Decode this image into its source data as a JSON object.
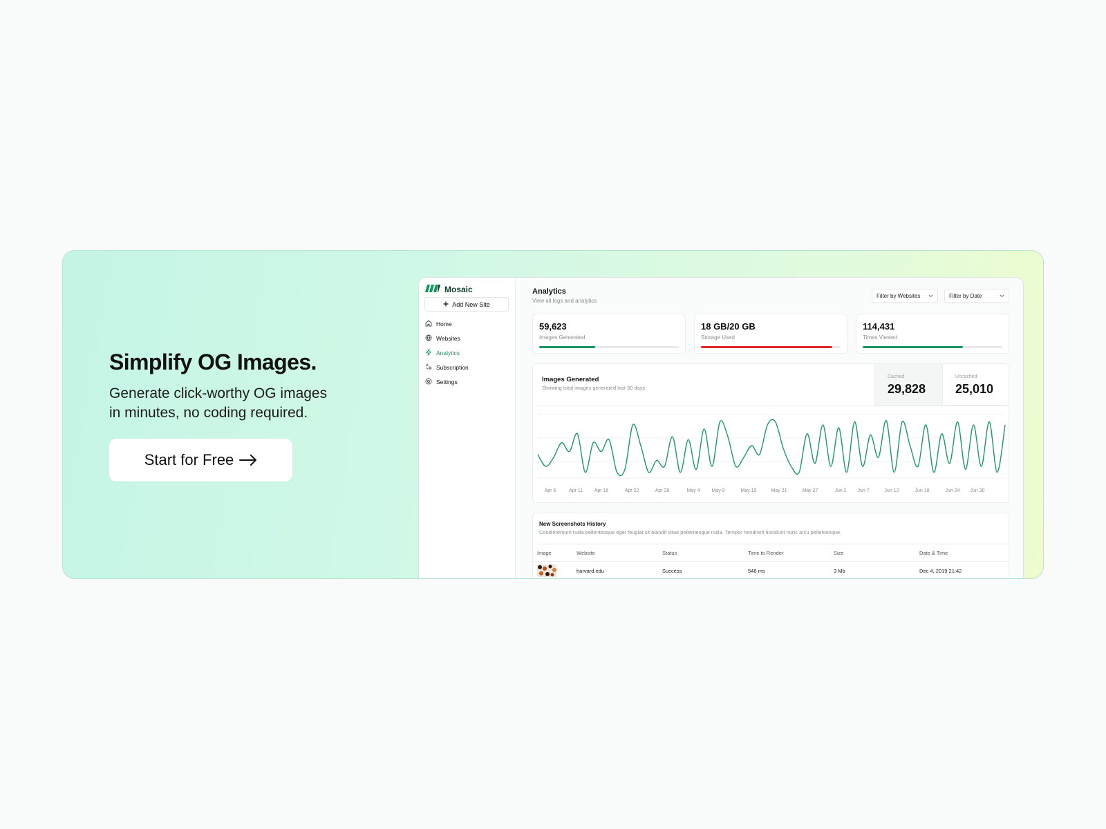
{
  "hero": {
    "title": "Simplify OG Images.",
    "subtitle_line1": "Generate click-worthy OG images",
    "subtitle_line2": "in minutes, no coding required.",
    "cta_label": "Start for Free",
    "cta_icon": "arrow-right-icon"
  },
  "colors": {
    "accent": "#14955c",
    "brand_dark": "#0f3d2b",
    "danger": "#e02424",
    "chart_line": "#1a9a66"
  },
  "app": {
    "brand": "Mosaic",
    "add_site_label": "Add New Site",
    "nav": [
      {
        "label": "Home",
        "icon": "home-icon",
        "active": false
      },
      {
        "label": "Websites",
        "icon": "globe-icon",
        "active": false
      },
      {
        "label": "Analytics",
        "icon": "lightning-icon",
        "active": true
      },
      {
        "label": "Subscription",
        "icon": "sparkle-icon",
        "active": false
      },
      {
        "label": "Settings",
        "icon": "gear-icon",
        "active": false
      }
    ],
    "page_title": "Analytics",
    "page_subtitle": "View all logs and analytics",
    "filters": {
      "websites": "Filter by Websites",
      "date": "Filter by Date"
    },
    "stats": [
      {
        "value": "59,623",
        "label": "Images Generated",
        "progress": 0.4,
        "color": "#14955c"
      },
      {
        "value": "18 GB/20 GB",
        "label": "Storage Used",
        "progress": 0.94,
        "color": "#e02424"
      },
      {
        "value": "114,431",
        "label": "Times Viewed",
        "progress": 0.72,
        "color": "#14955c"
      }
    ],
    "chart": {
      "title": "Images Generated",
      "subtitle": "Showing total images generated last 30 days",
      "cached_label": "Cached",
      "cached_value": "29,828",
      "uncached_label": "Uncached",
      "uncached_value": "25,010"
    },
    "history": {
      "title": "New Screenshots History",
      "subtitle": "Condimentum nulla pellentesque eget feugiat sit blandit vitae pellentesque nulla. Tempor hendrerit tincidunt nunc arcu pellentesque.",
      "columns": [
        "Image",
        "Website",
        "Status",
        "Time to Render",
        "Size",
        "Date & Time"
      ],
      "rows": [
        {
          "website": "harvard.edu",
          "status": "Success",
          "time": "546 ms",
          "size": "3 Mb",
          "datetime": "Dec 4, 2019 21:42"
        }
      ]
    }
  },
  "chart_data": {
    "type": "line",
    "title": "Images Generated",
    "x_tick_labels": [
      "Apr 6",
      "Apr 11",
      "Apr 16",
      "Apr 22",
      "Apr 28",
      "May 4",
      "May 9",
      "May 15",
      "May 21",
      "May 27",
      "Jun 2",
      "Jun 7",
      "Jun 12",
      "Jun 18",
      "Jun 24",
      "Jun 30"
    ],
    "series": [
      {
        "values": [
          0.35,
          0.15,
          0.3,
          0.55,
          0.4,
          0.7,
          0.05,
          0.55,
          0.4,
          0.6,
          0.05,
          0.1,
          0.85,
          0.5,
          0.05,
          0.25,
          0.15,
          0.65,
          0.05,
          0.6,
          0.1,
          0.78,
          0.15,
          0.9,
          0.65,
          0.15,
          0.3,
          0.5,
          0.35,
          0.85,
          0.9,
          0.45,
          0.15,
          0.05,
          0.7,
          0.2,
          0.85,
          0.15,
          0.8,
          0.05,
          0.9,
          0.15,
          0.68,
          0.3,
          0.92,
          0.05,
          0.9,
          0.5,
          0.15,
          0.85,
          0.05,
          0.7,
          0.2,
          0.9,
          0.1,
          0.85,
          0.15,
          0.9,
          0.05,
          0.85
        ]
      }
    ],
    "grid": true,
    "legend": "none"
  }
}
